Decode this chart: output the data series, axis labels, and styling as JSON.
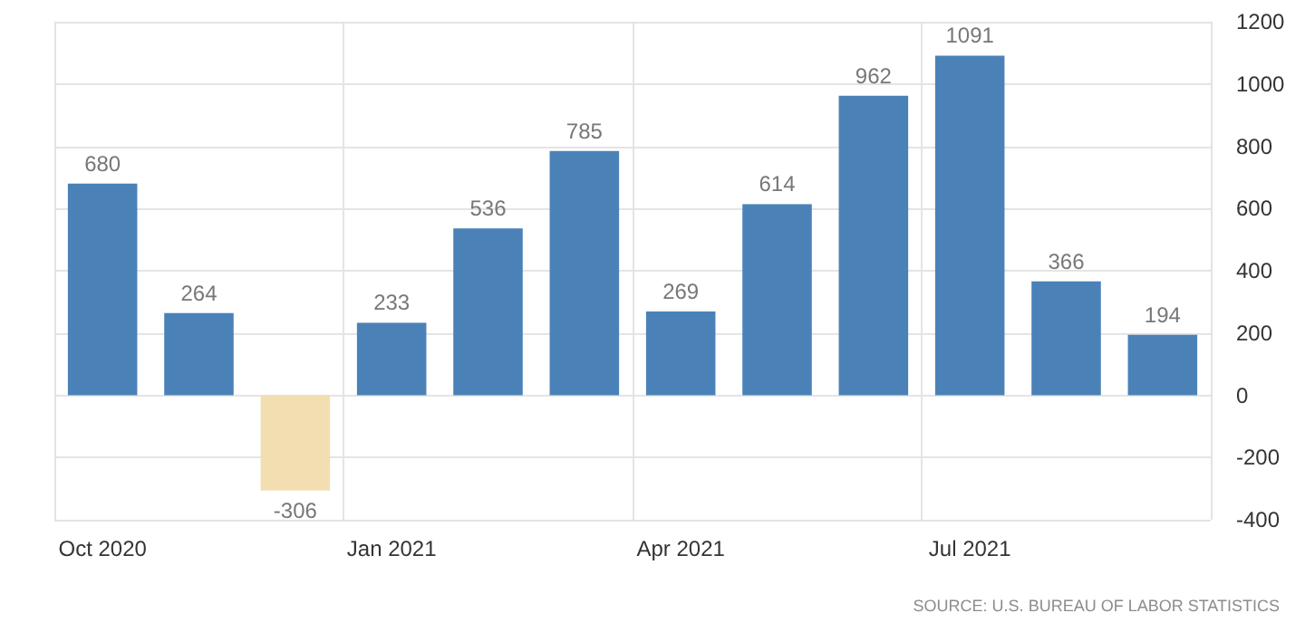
{
  "chart_data": {
    "type": "bar",
    "categories": [
      "Oct 2020",
      null,
      null,
      "Jan 2021",
      null,
      null,
      "Apr 2021",
      null,
      null,
      "Jul 2021",
      null,
      null
    ],
    "values": [
      680,
      264,
      -306,
      233,
      536,
      785,
      269,
      614,
      962,
      1091,
      366,
      194
    ],
    "colors": [
      "#4a82b8",
      "#4a82b8",
      "#f3deb1",
      "#4a82b8",
      "#4a82b8",
      "#4a82b8",
      "#4a82b8",
      "#4a82b8",
      "#4a82b8",
      "#4a82b8",
      "#4a82b8",
      "#4a82b8"
    ],
    "data_labels": true,
    "ylim": [
      -400,
      1200
    ],
    "yticks": [
      -400,
      -200,
      0,
      200,
      400,
      600,
      800,
      1000,
      1200
    ],
    "grid": true,
    "annotations": [
      "SOURCE: U.S. BUREAU OF LABOR STATISTICS"
    ]
  }
}
